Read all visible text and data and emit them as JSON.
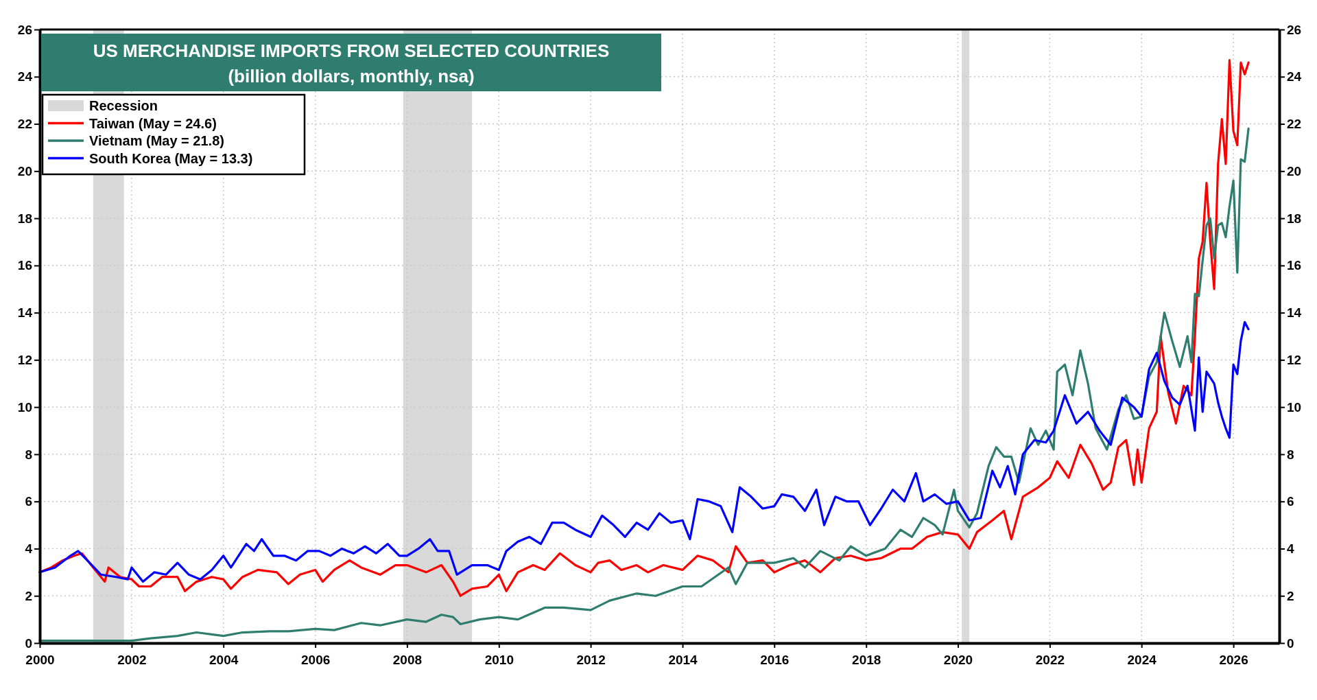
{
  "chart_data": {
    "type": "line",
    "title": "US MERCHANDISE IMPORTS FROM SELECTED COUNTRIES",
    "subtitle": "(billion dollars, monthly, nsa)",
    "xlim": [
      "2000",
      "2027"
    ],
    "xticks": [
      "2000",
      "2002",
      "2004",
      "2006",
      "2008",
      "2010",
      "2012",
      "2014",
      "2016",
      "2018",
      "2020",
      "2022",
      "2024",
      "2026"
    ],
    "ylim": [
      0,
      26
    ],
    "yticks": [
      0,
      2,
      4,
      6,
      8,
      10,
      12,
      14,
      16,
      18,
      20,
      22,
      24,
      26
    ],
    "y2lim": [
      0,
      26
    ],
    "y2ticks": [
      0,
      2,
      4,
      6,
      8,
      10,
      12,
      14,
      16,
      18,
      20,
      22,
      24,
      26
    ],
    "grid": true,
    "legend": "top left",
    "line_style": "solid",
    "bands": [
      {
        "axis": "x",
        "from": "2001-03",
        "to": "2001-11",
        "label": "Recession",
        "color": "#d9d9d9"
      },
      {
        "axis": "x",
        "from": "2007-12",
        "to": "2009-06",
        "color": "#d9d9d9"
      },
      {
        "axis": "x",
        "from": "2020-02",
        "to": "2020-04",
        "color": "#d9d9d9"
      }
    ],
    "series": [
      {
        "name": "Taiwan (May = 24.6)",
        "color": "#ff0000",
        "x": [
          "2000-01",
          "2000-04",
          "2000-07",
          "2000-10",
          "2000-12",
          "2001-03",
          "2001-06",
          "2001-07",
          "2001-10",
          "2002-01",
          "2002-03",
          "2002-06",
          "2002-09",
          "2003-01",
          "2003-03",
          "2003-06",
          "2003-10",
          "2004-01",
          "2004-03",
          "2004-06",
          "2004-10",
          "2005-03",
          "2005-06",
          "2005-09",
          "2006-01",
          "2006-03",
          "2006-06",
          "2006-10",
          "2007-01",
          "2007-06",
          "2007-10",
          "2008-01",
          "2008-06",
          "2008-10",
          "2009-01",
          "2009-03",
          "2009-06",
          "2009-10",
          "2010-01",
          "2010-03",
          "2010-06",
          "2010-10",
          "2011-01",
          "2011-05",
          "2011-09",
          "2012-01",
          "2012-03",
          "2012-06",
          "2012-09",
          "2013-01",
          "2013-04",
          "2013-08",
          "2014-01",
          "2014-05",
          "2014-09",
          "2015-01",
          "2015-03",
          "2015-06",
          "2015-10",
          "2016-01",
          "2016-05",
          "2016-09",
          "2017-01",
          "2017-05",
          "2017-09",
          "2018-01",
          "2018-05",
          "2018-10",
          "2019-01",
          "2019-05",
          "2019-09",
          "2020-01",
          "2020-04",
          "2020-06",
          "2020-10",
          "2021-01",
          "2021-03",
          "2021-06",
          "2021-10",
          "2022-01",
          "2022-03",
          "2022-06",
          "2022-09",
          "2022-12",
          "2023-03",
          "2023-05",
          "2023-07",
          "2023-09",
          "2023-11",
          "2023-12",
          "2024-01",
          "2024-03",
          "2024-05",
          "2024-06",
          "2024-08",
          "2024-10",
          "2024-12",
          "2025-02",
          "2025-03",
          "2025-04",
          "2025-05",
          "2025-06",
          "2025-07",
          "2025-08",
          "2025-09",
          "2025-10",
          "2025-11",
          "2025-12",
          "2026-01",
          "2026-02",
          "2026-03",
          "2026-04",
          "2026-05"
        ],
        "values": [
          3.0,
          3.2,
          3.5,
          3.7,
          3.8,
          3.2,
          2.6,
          3.2,
          2.8,
          2.7,
          2.4,
          2.4,
          2.8,
          2.8,
          2.2,
          2.6,
          2.8,
          2.7,
          2.3,
          2.8,
          3.1,
          3.0,
          2.5,
          2.9,
          3.1,
          2.6,
          3.1,
          3.5,
          3.2,
          2.9,
          3.3,
          3.3,
          3.0,
          3.3,
          2.6,
          2.0,
          2.3,
          2.4,
          2.9,
          2.2,
          3.0,
          3.3,
          3.1,
          3.8,
          3.3,
          3.0,
          3.4,
          3.5,
          3.1,
          3.3,
          3.0,
          3.3,
          3.1,
          3.7,
          3.5,
          3.0,
          4.1,
          3.4,
          3.5,
          3.0,
          3.3,
          3.5,
          3.0,
          3.6,
          3.7,
          3.5,
          3.6,
          4.0,
          4.0,
          4.5,
          4.7,
          4.6,
          4.0,
          4.7,
          5.2,
          5.6,
          4.4,
          6.2,
          6.6,
          7.0,
          7.7,
          7.0,
          8.4,
          7.6,
          6.5,
          6.8,
          8.3,
          8.6,
          6.7,
          8.2,
          6.8,
          9.1,
          9.8,
          13.0,
          10.6,
          9.3,
          10.9,
          10.5,
          13.0,
          16.3,
          17.0,
          19.5,
          17.0,
          15.0,
          20.3,
          22.2,
          20.3,
          24.7,
          21.7,
          21.1,
          24.6,
          24.1,
          24.6
        ]
      },
      {
        "name": "Vietnam (May = 21.8)",
        "color": "#2e7d6f",
        "x": [
          "2000-01",
          "2001-01",
          "2002-01",
          "2002-06",
          "2003-01",
          "2003-06",
          "2004-01",
          "2004-06",
          "2005-01",
          "2005-06",
          "2006-01",
          "2006-06",
          "2007-01",
          "2007-06",
          "2008-01",
          "2008-06",
          "2008-10",
          "2009-01",
          "2009-03",
          "2009-08",
          "2010-01",
          "2010-06",
          "2011-01",
          "2011-06",
          "2012-01",
          "2012-06",
          "2013-01",
          "2013-06",
          "2014-01",
          "2014-06",
          "2015-01",
          "2015-03",
          "2015-06",
          "2016-01",
          "2016-06",
          "2016-09",
          "2017-01",
          "2017-06",
          "2017-09",
          "2018-01",
          "2018-06",
          "2018-10",
          "2019-01",
          "2019-04",
          "2019-07",
          "2019-09",
          "2019-12",
          "2020-01",
          "2020-04",
          "2020-06",
          "2020-09",
          "2020-11",
          "2021-01",
          "2021-03",
          "2021-05",
          "2021-08",
          "2021-10",
          "2021-12",
          "2022-02",
          "2022-03",
          "2022-05",
          "2022-07",
          "2022-09",
          "2022-11",
          "2023-01",
          "2023-04",
          "2023-07",
          "2023-09",
          "2023-11",
          "2024-01",
          "2024-03",
          "2024-05",
          "2024-07",
          "2024-09",
          "2024-11",
          "2025-01",
          "2025-02",
          "2025-03",
          "2025-04",
          "2025-05",
          "2025-06",
          "2025-07",
          "2025-08",
          "2025-09",
          "2025-10",
          "2025-11",
          "2025-12",
          "2026-01",
          "2026-02",
          "2026-03",
          "2026-04",
          "2026-05"
        ],
        "values": [
          0.1,
          0.1,
          0.1,
          0.2,
          0.3,
          0.45,
          0.3,
          0.45,
          0.5,
          0.5,
          0.6,
          0.55,
          0.85,
          0.75,
          1.0,
          0.9,
          1.2,
          1.1,
          0.8,
          1.0,
          1.1,
          1.0,
          1.5,
          1.5,
          1.4,
          1.8,
          2.1,
          2.0,
          2.4,
          2.4,
          3.2,
          2.5,
          3.4,
          3.4,
          3.6,
          3.2,
          3.9,
          3.5,
          4.1,
          3.7,
          4.0,
          4.8,
          4.5,
          5.3,
          5.0,
          4.6,
          6.5,
          5.6,
          4.9,
          5.5,
          7.5,
          8.3,
          7.9,
          7.9,
          6.8,
          9.1,
          8.4,
          9.0,
          8.2,
          11.5,
          11.8,
          10.5,
          12.4,
          11.0,
          9.1,
          8.2,
          9.9,
          10.5,
          9.5,
          9.6,
          11.3,
          11.9,
          14.0,
          12.8,
          11.7,
          13.0,
          11.9,
          14.8,
          14.7,
          16.2,
          17.7,
          18.0,
          16.3,
          17.7,
          17.8,
          17.2,
          18.5,
          19.6,
          15.7,
          20.5,
          20.4,
          21.8
        ]
      },
      {
        "name": "South Korea (May = 13.3)",
        "color": "#0000ff",
        "x": [
          "2000-01",
          "2000-05",
          "2000-09",
          "2000-11",
          "2001-02",
          "2001-05",
          "2001-09",
          "2001-12",
          "2002-01",
          "2002-04",
          "2002-07",
          "2002-10",
          "2003-01",
          "2003-04",
          "2003-07",
          "2003-10",
          "2004-01",
          "2004-03",
          "2004-07",
          "2004-09",
          "2004-11",
          "2005-02",
          "2005-05",
          "2005-08",
          "2005-11",
          "2006-02",
          "2006-05",
          "2006-08",
          "2006-11",
          "2007-02",
          "2007-05",
          "2007-08",
          "2007-11",
          "2008-01",
          "2008-04",
          "2008-07",
          "2008-09",
          "2008-12",
          "2009-02",
          "2009-06",
          "2009-10",
          "2010-01",
          "2010-03",
          "2010-06",
          "2010-09",
          "2010-12",
          "2011-03",
          "2011-06",
          "2011-09",
          "2012-01",
          "2012-04",
          "2012-07",
          "2012-10",
          "2013-01",
          "2013-04",
          "2013-07",
          "2013-10",
          "2014-01",
          "2014-03",
          "2014-05",
          "2014-08",
          "2014-11",
          "2015-02",
          "2015-04",
          "2015-07",
          "2015-10",
          "2016-01",
          "2016-03",
          "2016-06",
          "2016-09",
          "2016-12",
          "2017-02",
          "2017-05",
          "2017-08",
          "2017-11",
          "2018-02",
          "2018-05",
          "2018-08",
          "2018-11",
          "2019-02",
          "2019-04",
          "2019-07",
          "2019-10",
          "2020-01",
          "2020-04",
          "2020-07",
          "2020-10",
          "2020-12",
          "2021-02",
          "2021-04",
          "2021-06",
          "2021-09",
          "2021-12",
          "2022-02",
          "2022-05",
          "2022-08",
          "2022-11",
          "2023-02",
          "2023-05",
          "2023-08",
          "2023-11",
          "2024-01",
          "2024-03",
          "2024-05",
          "2024-07",
          "2024-09",
          "2024-11",
          "2025-01",
          "2025-03",
          "2025-04",
          "2025-05",
          "2025-06",
          "2025-08",
          "2025-09",
          "2025-10",
          "2025-11",
          "2025-12",
          "2026-01",
          "2026-02",
          "2026-03",
          "2026-04",
          "2026-05"
        ],
        "values": [
          3.0,
          3.2,
          3.7,
          3.9,
          3.4,
          2.9,
          2.8,
          2.7,
          3.2,
          2.6,
          3.0,
          2.9,
          3.4,
          2.9,
          2.7,
          3.1,
          3.7,
          3.2,
          4.2,
          3.9,
          4.4,
          3.7,
          3.7,
          3.5,
          3.9,
          3.9,
          3.7,
          4.0,
          3.8,
          4.1,
          3.8,
          4.2,
          3.7,
          3.7,
          4.0,
          4.4,
          3.9,
          3.9,
          2.9,
          3.3,
          3.3,
          3.1,
          3.9,
          4.3,
          4.5,
          4.2,
          5.1,
          5.1,
          4.8,
          4.5,
          5.4,
          5.0,
          4.5,
          5.1,
          4.8,
          5.5,
          5.1,
          5.2,
          4.4,
          6.1,
          6.0,
          5.8,
          4.7,
          6.6,
          6.2,
          5.7,
          5.8,
          6.3,
          6.2,
          5.6,
          6.5,
          5.0,
          6.2,
          6.0,
          6.0,
          5.0,
          5.7,
          6.5,
          6.0,
          7.2,
          6.0,
          6.3,
          5.9,
          6.0,
          5.2,
          5.3,
          7.3,
          6.6,
          7.5,
          6.3,
          8.0,
          8.6,
          8.5,
          9.0,
          10.5,
          9.3,
          9.8,
          9.0,
          8.4,
          10.4,
          10.0,
          9.6,
          11.6,
          12.3,
          11.1,
          10.4,
          10.1,
          10.9,
          9.0,
          12.1,
          9.8,
          11.5,
          11.0,
          10.2,
          9.6,
          9.1,
          8.7,
          11.8,
          11.4,
          12.8,
          13.6,
          13.3
        ]
      }
    ]
  }
}
